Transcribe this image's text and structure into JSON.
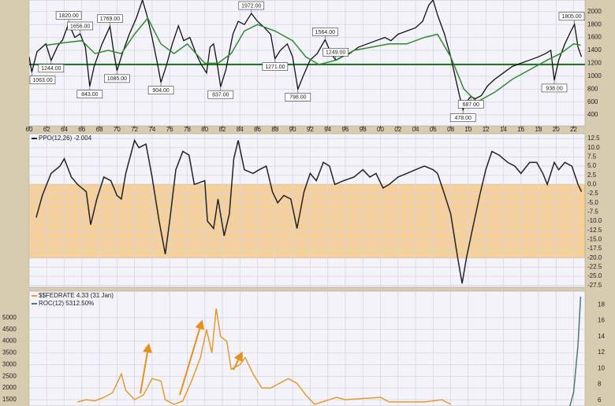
{
  "chart_data": [
    {
      "type": "line",
      "xlim": [
        1960,
        2023.3
      ],
      "ylim": [
        230,
        2180
      ],
      "xticks": [
        {
          "value": 1960,
          "label": "60"
        },
        {
          "value": 1962,
          "label": "62"
        },
        {
          "value": 1964,
          "label": "64"
        },
        {
          "value": 1966,
          "label": "66"
        },
        {
          "value": 1968,
          "label": "68"
        },
        {
          "value": 1970,
          "label": "70"
        },
        {
          "value": 1972,
          "label": "72"
        },
        {
          "value": 1974,
          "label": "74"
        },
        {
          "value": 1976,
          "label": "76"
        },
        {
          "value": 1978,
          "label": "78"
        },
        {
          "value": 1980,
          "label": "80"
        },
        {
          "value": 1982,
          "label": "82"
        },
        {
          "value": 1984,
          "label": "84"
        },
        {
          "value": 1986,
          "label": "86"
        },
        {
          "value": 1988,
          "label": "88"
        },
        {
          "value": 1990,
          "label": "90"
        },
        {
          "value": 1992,
          "label": "92"
        },
        {
          "value": 1994,
          "label": "94"
        },
        {
          "value": 1996,
          "label": "96"
        },
        {
          "value": 1998,
          "label": "98"
        },
        {
          "value": 2000,
          "label": "00"
        },
        {
          "value": 2002,
          "label": "02"
        },
        {
          "value": 2004,
          "label": "04"
        },
        {
          "value": 2006,
          "label": "06"
        },
        {
          "value": 2008,
          "label": "08"
        },
        {
          "value": 2010,
          "label": "10"
        },
        {
          "value": 2012,
          "label": "12"
        },
        {
          "value": 2014,
          "label": "14"
        },
        {
          "value": 2016,
          "label": "16"
        },
        {
          "value": 2018,
          "label": "18"
        },
        {
          "value": 2020,
          "label": "20"
        },
        {
          "value": 2022,
          "label": "22"
        }
      ],
      "yticks": [
        400,
        600,
        800,
        1000,
        1200,
        1400,
        1600,
        1800,
        2000
      ],
      "grid": true,
      "hline": 1180,
      "hline_color": "#1e7a1e",
      "series": [
        {
          "color": "#111111",
          "x": [
            1960.0,
            1960.3,
            1960.9,
            1961.9,
            1962.5,
            1963.3,
            1963.8,
            1964.5,
            1965.2,
            1965.8,
            1966.4,
            1966.9,
            1967.4,
            1968.3,
            1969.2,
            1969.6,
            1970.0,
            1970.6,
            1971.4,
            1972.2,
            1972.9,
            1973.4,
            1974.0,
            1974.6,
            1975.0,
            1975.6,
            1976.3,
            1977.0,
            1977.6,
            1978.3,
            1979.0,
            1979.6,
            1980.2,
            1980.6,
            1981.0,
            1981.4,
            1981.8,
            1982.4,
            1983.2,
            1983.8,
            1984.5,
            1985.3,
            1986.0,
            1986.8,
            1987.5,
            1988.0,
            1988.6,
            1989.4,
            1990.0,
            1990.6,
            1991.2,
            1992.0,
            1992.8,
            1993.7,
            1994.4,
            1994.9,
            1995.6,
            1996.5,
            1997.5,
            1998.5,
            1999.5,
            2000.5,
            2001.2,
            2002.0,
            2003.0,
            2004.0,
            2004.8,
            2005.5,
            2006.0,
            2006.5,
            2007.3,
            2008.0,
            2008.5,
            2009.0,
            2009.4,
            2009.8,
            2010.3,
            2010.8,
            2011.5,
            2012.2,
            2013.0,
            2014.0,
            2015.0,
            2016.0,
            2017.0,
            2018.0,
            2018.8,
            2019.4,
            2019.8,
            2020.3,
            2021.0,
            2021.7,
            2022.1,
            2022.5,
            2022.9
          ],
          "values": [
            1300,
            1063,
            1380,
            1500,
            1244,
            1480,
            1560,
            1820,
            1600,
            1656,
            1450,
            843,
            1150,
            1500,
            1769,
            1400,
            1085,
            1350,
            1650,
            1900,
            2180,
            1950,
            1600,
            1200,
            904,
            1150,
            1500,
            1780,
            1550,
            1600,
            1350,
            1180,
            1050,
            1450,
            1500,
            1200,
            837,
            1100,
            1650,
            1850,
            1800,
            1972,
            1850,
            1750,
            1650,
            1271,
            1400,
            1500,
            1300,
            798,
            1000,
            1250,
            1350,
            1564,
            1350,
            1249,
            1300,
            1350,
            1450,
            1500,
            1550,
            1600,
            1550,
            1650,
            1700,
            1750,
            1850,
            2100,
            2180,
            1950,
            1650,
            1300,
            1000,
            700,
            478,
            600,
            687,
            650,
            700,
            850,
            950,
            1050,
            1150,
            1200,
            1250,
            1300,
            1350,
            1400,
            938,
            1250,
            1500,
            1700,
            1805,
            1450,
            1300
          ]
        },
        {
          "color": "#2f8a2f",
          "x": [
            1962,
            1964,
            1966,
            1967.5,
            1969,
            1970.5,
            1972,
            1973.5,
            1975,
            1976.5,
            1978,
            1980,
            1981.5,
            1983,
            1984.5,
            1986,
            1988,
            1990,
            1991.5,
            1993,
            1995,
            1997,
            1999,
            2001,
            2003,
            2005,
            2006.5,
            2008,
            2009.5,
            2011,
            2013,
            2015,
            2017,
            2019,
            2020.5,
            2022,
            2022.8
          ],
          "values": [
            1480,
            1520,
            1550,
            1350,
            1400,
            1350,
            1650,
            1900,
            1500,
            1350,
            1500,
            1200,
            1200,
            1350,
            1700,
            1800,
            1700,
            1550,
            1300,
            1180,
            1250,
            1400,
            1450,
            1500,
            1500,
            1600,
            1650,
            1300,
            800,
            600,
            750,
            950,
            1100,
            1250,
            1350,
            1500,
            1480
          ]
        }
      ],
      "annotations": [
        {
          "x": 1960.3,
          "value": 1063,
          "label": "1063.00"
        },
        {
          "x": 1962.5,
          "value": 1244,
          "label": "1244.00"
        },
        {
          "x": 1964.5,
          "value": 1820,
          "label": "1820.00"
        },
        {
          "x": 1965.8,
          "value": 1656,
          "label": "1656.00"
        },
        {
          "x": 1966.9,
          "value": 843,
          "label": "843.00"
        },
        {
          "x": 1969.2,
          "value": 1769,
          "label": "1769.00"
        },
        {
          "x": 1970.0,
          "value": 1085,
          "label": "1085.00"
        },
        {
          "x": 1975.0,
          "value": 904,
          "label": "904.00"
        },
        {
          "x": 1981.8,
          "value": 837,
          "label": "837.00"
        },
        {
          "x": 1985.3,
          "value": 1972,
          "label": "1972.00"
        },
        {
          "x": 1988.0,
          "value": 1271,
          "label": "1271.00"
        },
        {
          "x": 1990.6,
          "value": 798,
          "label": "798.00"
        },
        {
          "x": 1993.7,
          "value": 1564,
          "label": "1564.00"
        },
        {
          "x": 1994.9,
          "value": 1249,
          "label": "1249.00"
        },
        {
          "x": 2009.4,
          "value": 478,
          "label": "478.00"
        },
        {
          "x": 2010.3,
          "value": 687,
          "label": "687.00"
        },
        {
          "x": 2019.8,
          "value": 938,
          "label": "938.00"
        },
        {
          "x": 2022.1,
          "value": 1805,
          "label": "1805.00"
        }
      ]
    },
    {
      "type": "line",
      "xlim": [
        1960,
        2023.3
      ],
      "ylim": [
        -28,
        13.8
      ],
      "yticks": [
        12.5,
        {
          "value": 10,
          "label": "10.0"
        },
        7.5,
        {
          "value": 5,
          "label": "5.0"
        },
        2.5,
        {
          "value": 0,
          "label": "0.0"
        },
        -2.5,
        {
          "value": -5,
          "label": "-5.0"
        },
        -7.5,
        {
          "value": -10,
          "label": "-10.0"
        },
        -12.5,
        {
          "value": -15,
          "label": "-15.0"
        },
        -17.5,
        {
          "value": -20,
          "label": "-20.0"
        },
        -22.5,
        {
          "value": -25,
          "label": "-25.0"
        },
        -27.5
      ],
      "grid": true,
      "band": [
        0,
        -20
      ],
      "band_color": "#f5c98a",
      "series": [
        {
          "name": "PPO(12,26) -2.004",
          "color": "#222222",
          "x": [
            1960.8,
            1961.5,
            1962.5,
            1963.5,
            1964,
            1964.8,
            1965.5,
            1966.5,
            1967,
            1967.7,
            1968.5,
            1969.3,
            1970,
            1970.5,
            1971,
            1972,
            1972.5,
            1973.3,
            1974,
            1974.8,
            1975.5,
            1976,
            1976.7,
            1977.5,
            1978.2,
            1978.8,
            1980,
            1980.3,
            1981,
            1981.5,
            1982.2,
            1982.8,
            1983.3,
            1983.8,
            1984.5,
            1985.5,
            1986.2,
            1987,
            1987.7,
            1988.3,
            1989,
            1989.8,
            1990.5,
            1991.3,
            1992,
            1992.7,
            1993.5,
            1994.2,
            1994.8,
            1995.8,
            1997,
            1998,
            1998.8,
            1999.5,
            2000.3,
            2001,
            2002,
            2003,
            2004,
            2005,
            2006,
            2006.5,
            2007.2,
            2008,
            2008.8,
            2009.3,
            2009.8,
            2010.5,
            2011.3,
            2012,
            2012.7,
            2013.5,
            2014.5,
            2015.3,
            2016,
            2017,
            2017.8,
            2018.5,
            2019,
            2019.8,
            2020.3,
            2021,
            2021.8,
            2022.5,
            2022.9
          ],
          "values": [
            -9,
            -3,
            3,
            5,
            7,
            2,
            0,
            -2,
            -11,
            -4,
            2,
            1,
            -3,
            -4,
            3,
            12,
            10,
            11,
            2,
            -10,
            -19,
            -10,
            4,
            9,
            8,
            0,
            1,
            -10,
            -12,
            -4,
            -14,
            -8,
            7,
            12,
            4,
            3,
            4,
            5,
            -2,
            -5,
            -3,
            -4,
            -12,
            -2,
            3,
            1,
            6,
            5,
            0,
            1,
            2,
            4,
            2,
            3,
            -1,
            0,
            2,
            3,
            4,
            5,
            4,
            3,
            -2,
            -8,
            -20,
            -27,
            -20,
            -12,
            -3,
            4,
            9,
            8,
            6,
            5,
            3,
            6,
            6,
            3,
            0,
            6,
            4,
            6,
            5,
            0,
            -2
          ]
        }
      ]
    },
    {
      "type": "line",
      "xlim": [
        1960,
        2023.3
      ],
      "ylim": [
        1230,
        6140
      ],
      "y2lim": [
        5.3,
        19.7
      ],
      "yticks": [
        1500,
        2000,
        2500,
        3000,
        3500,
        4000,
        4500,
        5000
      ],
      "y2ticks": [
        6,
        8,
        10,
        12,
        14,
        16,
        18
      ],
      "grid": true,
      "series": [
        {
          "name": "$$FEDRATE 4.33 (31 Jan)",
          "color": "#e69a2e",
          "x": [
            1965.5,
            1966.5,
            1967.5,
            1968.5,
            1969.5,
            1970.5,
            1971,
            1972,
            1973,
            1974,
            1975,
            1975.5,
            1976.5,
            1977.5,
            1978.5,
            1979.5,
            1980.2,
            1980.8,
            1981.3,
            1981.8,
            1982.5,
            1983,
            1984,
            1984.6,
            1985.5,
            1986.5,
            1987.5,
            1988.5,
            1989.5,
            1990.5,
            1991.5,
            1992.5,
            1995,
            1996,
            2000,
            2001,
            2005,
            2007,
            2008
          ],
          "values": [
            1400,
            1500,
            1450,
            1600,
            1800,
            2600,
            1900,
            1500,
            1700,
            2400,
            2300,
            1500,
            1300,
            1450,
            2300,
            3300,
            4500,
            3500,
            5400,
            4200,
            4000,
            2800,
            3000,
            3300,
            2600,
            2000,
            2000,
            2200,
            2400,
            2200,
            1700,
            1300,
            1600,
            1500,
            1600,
            1400,
            1400,
            1500,
            1300
          ]
        },
        {
          "name": "ROC(12) 5312.50%",
          "color": "#4f7a6a",
          "axis": "y2",
          "x": [
            2021.5,
            2022,
            2022.5,
            2022.8
          ],
          "values": [
            5,
            7,
            13,
            19
          ]
        }
      ]
    }
  ]
}
